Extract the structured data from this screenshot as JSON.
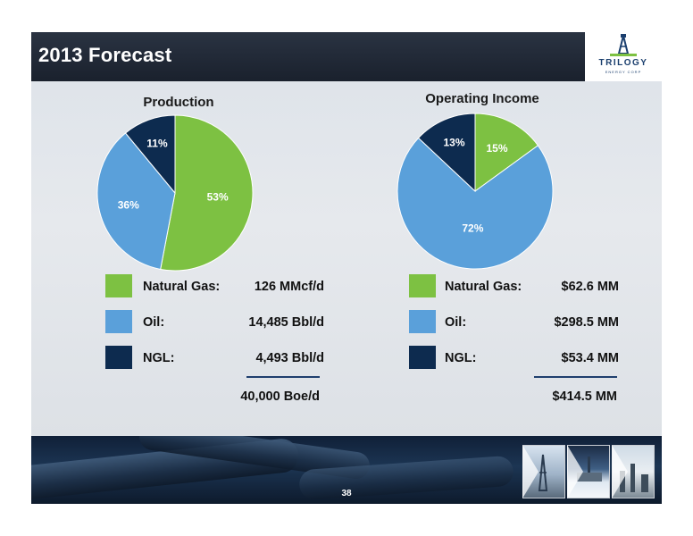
{
  "header": {
    "title": "2013 Forecast"
  },
  "logo": {
    "word": "TRILOGY",
    "sub": "ENERGY CORP"
  },
  "colors": {
    "natural_gas": "#7dc142",
    "oil": "#5aa0da",
    "ngl": "#0d2b4f",
    "rule": "#1f3f6e"
  },
  "chart_data": [
    {
      "type": "pie",
      "title": "Production",
      "labels": [
        "Natural Gas",
        "Oil",
        "NGL"
      ],
      "values": [
        53,
        36,
        11
      ],
      "value_labels": [
        "53%",
        "36%",
        "11%"
      ],
      "legend": [
        {
          "label": "Natural Gas:",
          "value": "126 MMcf/d"
        },
        {
          "label": "Oil:",
          "value": "14,485 Bbl/d"
        },
        {
          "label": "NGL:",
          "value": "4,493 Bbl/d"
        }
      ],
      "total": "40,000 Boe/d"
    },
    {
      "type": "pie",
      "title": "Operating Income",
      "labels": [
        "Natural Gas",
        "Oil",
        "NGL"
      ],
      "values": [
        15,
        72,
        13
      ],
      "value_labels": [
        "15%",
        "72%",
        "13%"
      ],
      "legend": [
        {
          "label": "Natural Gas:",
          "value": "$62.6 MM"
        },
        {
          "label": "Oil:",
          "value": "$298.5 MM"
        },
        {
          "label": "NGL:",
          "value": "$53.4 MM"
        }
      ],
      "total": "$414.5 MM"
    }
  ],
  "footer": {
    "page_number": "38"
  }
}
